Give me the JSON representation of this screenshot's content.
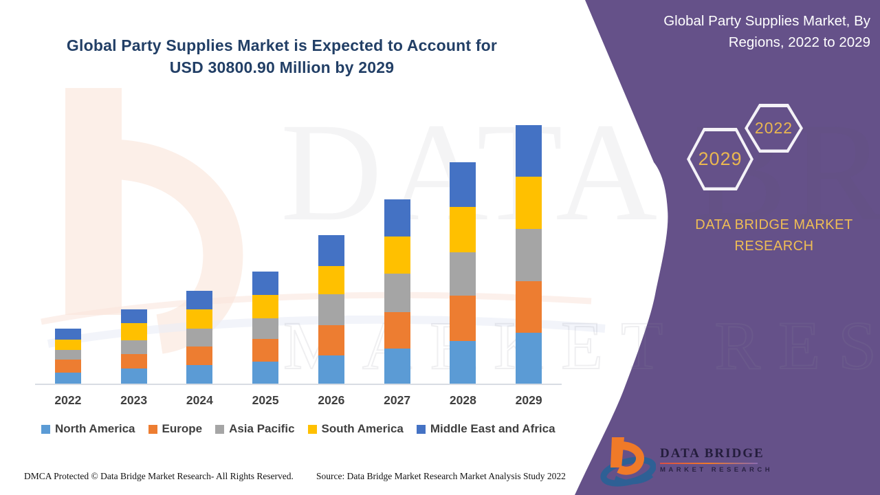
{
  "title": {
    "text": "Global Party Supplies Market is Expected to Account for USD 30800.90 Million by 2029"
  },
  "side_panel": {
    "heading": "Global Party Supplies Market, By Regions, 2022 to 2029",
    "hex_badge_front": "2029",
    "hex_badge_back": "2022",
    "brand_text": "DATA BRIDGE MARKET RESEARCH",
    "logo": {
      "line1": "DATA BRIDGE",
      "line2": "MARKET RESEARCH"
    },
    "panel_color": "#655189",
    "gold_color": "#EFBD55"
  },
  "watermarks": {
    "big_text": "DATA BRIDGE",
    "outline_text": "MARKET RESEARCH"
  },
  "chart_data": {
    "type": "bar",
    "stacked": true,
    "title": "Global Party Supplies Market, By Regions, 2022 to 2029",
    "xlabel": "",
    "ylabel": "",
    "value_axis_visible": false,
    "units": "relative segment heights (no value axis shown); only labeled figure is total USD 30800.90 Million in 2029",
    "legend_position": "bottom",
    "categories": [
      "2022",
      "2023",
      "2024",
      "2025",
      "2026",
      "2027",
      "2028",
      "2029"
    ],
    "series": [
      {
        "name": "North America",
        "color": "#5B9BD5",
        "values": [
          16,
          22,
          27,
          32,
          41,
          51,
          62,
          74
        ]
      },
      {
        "name": "Europe",
        "color": "#ED7D31",
        "values": [
          19,
          21,
          27,
          33,
          44,
          53,
          66,
          75
        ]
      },
      {
        "name": "Asia Pacific",
        "color": "#A5A5A5",
        "values": [
          14,
          20,
          26,
          30,
          45,
          56,
          63,
          76
        ]
      },
      {
        "name": "South America",
        "color": "#FFC000",
        "values": [
          15,
          25,
          28,
          34,
          41,
          54,
          66,
          76
        ]
      },
      {
        "name": "Middle East and Africa",
        "color": "#4472C4",
        "values": [
          16,
          20,
          27,
          34,
          45,
          54,
          65,
          75
        ]
      }
    ]
  },
  "footer": {
    "left": "DMCA Protected © Data Bridge Market Research- All Rights Reserved.",
    "source": "Source: Data Bridge Market Research Market Analysis Study 2022"
  }
}
